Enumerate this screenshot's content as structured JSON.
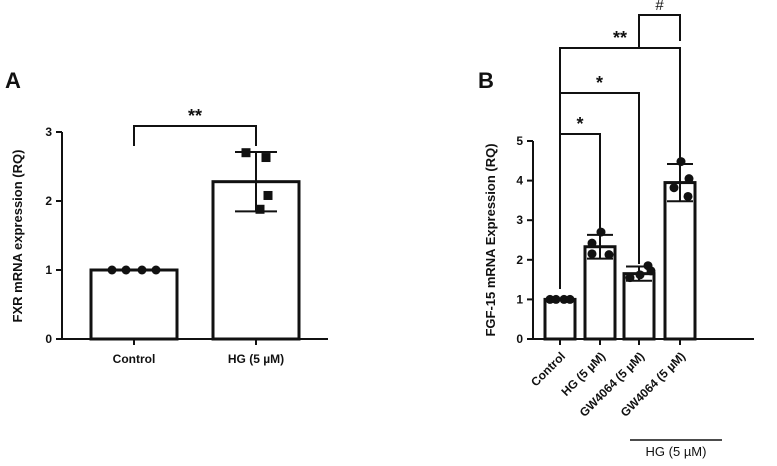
{
  "chart_data": [
    {
      "panel": "A",
      "type": "bar",
      "categories": [
        "Control",
        "HG (5 µM)"
      ],
      "values": [
        1.0,
        2.28
      ],
      "errors": [
        0.0,
        0.43
      ],
      "points": [
        [
          1.0,
          1.0,
          1.0,
          1.0
        ],
        [
          2.7,
          2.63,
          2.08,
          1.88
        ]
      ],
      "point_markers": [
        "circle",
        "square"
      ],
      "ylabel": "FXR mRNA expression (RQ)",
      "yticks": [
        "0",
        "1",
        "2",
        "3"
      ],
      "ylim": [
        0,
        3
      ],
      "annotations": [
        {
          "from": 0,
          "to": 1,
          "label": "**"
        }
      ]
    },
    {
      "panel": "B",
      "type": "bar",
      "categories": [
        "Control",
        "HG (5 µM)",
        "GW4064 (5 µM)",
        "GW4064 (5 µM)"
      ],
      "values": [
        1.0,
        2.33,
        1.65,
        3.95
      ],
      "errors": [
        0.0,
        0.3,
        0.18,
        0.47
      ],
      "points": [
        [
          1.0,
          1.0,
          1.0,
          1.0
        ],
        [
          2.7,
          2.42,
          2.15,
          2.13
        ],
        [
          1.85,
          1.62,
          1.55,
          1.72
        ],
        [
          4.48,
          4.05,
          3.82,
          3.6
        ]
      ],
      "ylabel": "FGF-15 mRNA Expression (RQ)",
      "yticks": [
        "0",
        "1",
        "2",
        "3",
        "4",
        "5"
      ],
      "ylim": [
        0,
        5
      ],
      "group_bracket": {
        "from": 2,
        "to": 3,
        "label": "HG (5 µM)"
      },
      "annotations": [
        {
          "from": 0,
          "to": 1,
          "label": "*"
        },
        {
          "from": 0,
          "to": 2,
          "label": "*"
        },
        {
          "from": 0,
          "to": 3,
          "label": "**"
        },
        {
          "from": 2,
          "to": 3,
          "label": "#"
        }
      ]
    }
  ]
}
